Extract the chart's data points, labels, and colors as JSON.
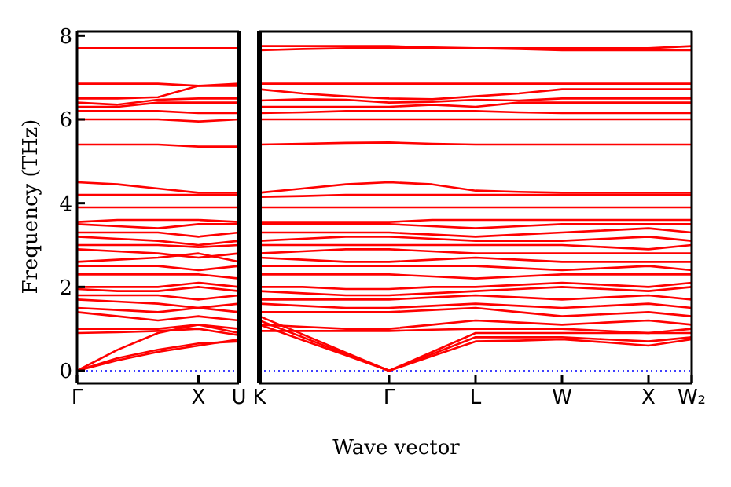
{
  "chart_data": [
    {
      "type": "line",
      "ylabel": "Frequency (THz)",
      "categories": [
        "Γ",
        null,
        null,
        "X",
        "U"
      ],
      "ylim": [
        -0.3,
        8.1
      ],
      "yticks": [
        0,
        2,
        4,
        6,
        8
      ],
      "grid": false,
      "marker": "none",
      "line_style": "solid",
      "ref_lines": [
        {
          "axis": "y",
          "value": 0,
          "color": "#0000ff",
          "line_style": "dotted"
        }
      ],
      "series": [
        {
          "color": "#ff0000",
          "values": [
            0,
            0.3,
            0.5,
            0.65,
            0.7
          ]
        },
        {
          "color": "#ff0000",
          "values": [
            0,
            0.25,
            0.45,
            0.6,
            0.75
          ]
        },
        {
          "color": "#ff0000",
          "values": [
            0,
            0.5,
            0.9,
            1.1,
            0.9
          ]
        },
        {
          "color": "#ff0000",
          "values": [
            0.9,
            0.92,
            0.95,
            1.0,
            0.85
          ]
        },
        {
          "color": "#ff0000",
          "values": [
            1.0,
            1.0,
            1.0,
            1.1,
            1.0
          ]
        },
        {
          "color": "#ff0000",
          "values": [
            1.4,
            1.3,
            1.2,
            1.3,
            1.2
          ]
        },
        {
          "color": "#ff0000",
          "values": [
            1.5,
            1.45,
            1.4,
            1.5,
            1.4
          ]
        },
        {
          "color": "#ff0000",
          "values": [
            1.7,
            1.65,
            1.6,
            1.5,
            1.6
          ]
        },
        {
          "color": "#ff0000",
          "values": [
            1.8,
            1.8,
            1.8,
            1.7,
            1.8
          ]
        },
        {
          "color": "#ff0000",
          "values": [
            1.95,
            1.9,
            1.9,
            2.0,
            1.9
          ]
        },
        {
          "color": "#ff0000",
          "values": [
            2.0,
            2.0,
            2.0,
            2.1,
            2.0
          ]
        },
        {
          "color": "#ff0000",
          "values": [
            2.3,
            2.3,
            2.3,
            2.3,
            2.2
          ]
        },
        {
          "color": "#ff0000",
          "values": [
            2.5,
            2.5,
            2.5,
            2.4,
            2.5
          ]
        },
        {
          "color": "#ff0000",
          "values": [
            2.6,
            2.65,
            2.7,
            2.8,
            2.6
          ]
        },
        {
          "color": "#ff0000",
          "values": [
            2.9,
            2.85,
            2.8,
            2.7,
            2.8
          ]
        },
        {
          "color": "#ff0000",
          "values": [
            3.0,
            3.0,
            3.0,
            2.95,
            3.0
          ]
        },
        {
          "color": "#ff0000",
          "values": [
            3.2,
            3.15,
            3.1,
            3.0,
            3.1
          ]
        },
        {
          "color": "#ff0000",
          "values": [
            3.3,
            3.3,
            3.3,
            3.2,
            3.3
          ]
        },
        {
          "color": "#ff0000",
          "values": [
            3.5,
            3.45,
            3.4,
            3.5,
            3.5
          ]
        },
        {
          "color": "#ff0000",
          "values": [
            3.55,
            3.6,
            3.6,
            3.6,
            3.55
          ]
        },
        {
          "color": "#ff0000",
          "values": [
            3.9,
            3.9,
            3.9,
            3.9,
            3.9
          ]
        },
        {
          "color": "#ff0000",
          "values": [
            4.2,
            4.2,
            4.2,
            4.2,
            4.2
          ]
        },
        {
          "color": "#ff0000",
          "values": [
            4.5,
            4.45,
            4.35,
            4.25,
            4.25
          ]
        },
        {
          "color": "#ff0000",
          "values": [
            5.4,
            5.4,
            5.4,
            5.35,
            5.35
          ]
        },
        {
          "color": "#ff0000",
          "values": [
            6.0,
            6.0,
            6.0,
            5.95,
            6.0
          ]
        },
        {
          "color": "#ff0000",
          "values": [
            6.2,
            6.2,
            6.2,
            6.15,
            6.15
          ]
        },
        {
          "color": "#ff0000",
          "values": [
            6.3,
            6.3,
            6.4,
            6.4,
            6.4
          ]
        },
        {
          "color": "#ff0000",
          "values": [
            6.4,
            6.35,
            6.47,
            6.5,
            6.5
          ]
        },
        {
          "color": "#ff0000",
          "values": [
            6.5,
            6.5,
            6.53,
            6.8,
            6.8
          ]
        },
        {
          "color": "#ff0000",
          "values": [
            6.85,
            6.85,
            6.85,
            6.8,
            6.85
          ]
        },
        {
          "color": "#ff0000",
          "values": [
            7.7,
            7.7,
            7.7,
            7.7,
            7.7
          ]
        }
      ]
    },
    {
      "type": "line",
      "xlabel": "Wave vector",
      "categories": [
        "K",
        null,
        null,
        "Γ",
        null,
        "L",
        null,
        "W",
        null,
        "X",
        "W₂"
      ],
      "ylim": [
        -0.3,
        8.1
      ],
      "yticks": [
        0,
        2,
        4,
        6,
        8
      ],
      "tick_labels": "x",
      "grid": false,
      "marker": "none",
      "line_style": "solid",
      "ref_lines": [
        {
          "axis": "y",
          "value": 0,
          "color": "#0000ff",
          "line_style": "dotted"
        }
      ],
      "series": [
        {
          "color": "#ff0000",
          "values": [
            1.3,
            0.87,
            0.43,
            0,
            0.4,
            0.8,
            0.8,
            0.8,
            0.75,
            0.7,
            0.8
          ]
        },
        {
          "color": "#ff0000",
          "values": [
            1.2,
            0.8,
            0.4,
            0,
            0.35,
            0.7,
            0.72,
            0.75,
            0.68,
            0.6,
            0.75
          ]
        },
        {
          "color": "#ff0000",
          "values": [
            1.1,
            0.73,
            0.37,
            0,
            0.45,
            0.9,
            0.9,
            0.9,
            0.9,
            0.9,
            0.9
          ]
        },
        {
          "color": "#ff0000",
          "values": [
            0.95,
            0.95,
            0.95,
            0.95,
            0.98,
            1.0,
            1.0,
            1.0,
            0.95,
            0.9,
            1.0
          ]
        },
        {
          "color": "#ff0000",
          "values": [
            1.1,
            1.05,
            1.0,
            1.0,
            1.1,
            1.2,
            1.15,
            1.1,
            1.15,
            1.2,
            1.1
          ]
        },
        {
          "color": "#ff0000",
          "values": [
            1.4,
            1.4,
            1.4,
            1.4,
            1.45,
            1.5,
            1.4,
            1.3,
            1.35,
            1.4,
            1.3
          ]
        },
        {
          "color": "#ff0000",
          "values": [
            1.6,
            1.55,
            1.5,
            1.5,
            1.55,
            1.6,
            1.55,
            1.5,
            1.55,
            1.6,
            1.5
          ]
        },
        {
          "color": "#ff0000",
          "values": [
            1.7,
            1.7,
            1.7,
            1.7,
            1.75,
            1.8,
            1.75,
            1.7,
            1.75,
            1.8,
            1.7
          ]
        },
        {
          "color": "#ff0000",
          "values": [
            1.9,
            1.85,
            1.8,
            1.8,
            1.85,
            1.9,
            1.95,
            2.0,
            1.95,
            1.9,
            2.0
          ]
        },
        {
          "color": "#ff0000",
          "values": [
            2.0,
            2.0,
            1.95,
            1.95,
            2.0,
            2.0,
            2.05,
            2.1,
            2.05,
            2.0,
            2.1
          ]
        },
        {
          "color": "#ff0000",
          "values": [
            2.3,
            2.3,
            2.3,
            2.3,
            2.25,
            2.2,
            2.25,
            2.3,
            2.3,
            2.3,
            2.3
          ]
        },
        {
          "color": "#ff0000",
          "values": [
            2.5,
            2.5,
            2.5,
            2.5,
            2.5,
            2.5,
            2.45,
            2.4,
            2.45,
            2.5,
            2.4
          ]
        },
        {
          "color": "#ff0000",
          "values": [
            2.7,
            2.65,
            2.6,
            2.6,
            2.65,
            2.7,
            2.65,
            2.6,
            2.6,
            2.6,
            2.6
          ]
        },
        {
          "color": "#ff0000",
          "values": [
            2.8,
            2.85,
            2.9,
            2.9,
            2.85,
            2.8,
            2.8,
            2.8,
            2.8,
            2.8,
            2.8
          ]
        },
        {
          "color": "#ff0000",
          "values": [
            3.0,
            3.0,
            3.0,
            3.0,
            3.0,
            3.0,
            3.0,
            3.0,
            2.95,
            2.9,
            3.0
          ]
        },
        {
          "color": "#ff0000",
          "values": [
            3.1,
            3.15,
            3.2,
            3.2,
            3.15,
            3.1,
            3.1,
            3.1,
            3.15,
            3.2,
            3.1
          ]
        },
        {
          "color": "#ff0000",
          "values": [
            3.3,
            3.3,
            3.3,
            3.3,
            3.25,
            3.2,
            3.25,
            3.3,
            3.35,
            3.4,
            3.3
          ]
        },
        {
          "color": "#ff0000",
          "values": [
            3.5,
            3.5,
            3.5,
            3.5,
            3.45,
            3.4,
            3.45,
            3.5,
            3.5,
            3.5,
            3.5
          ]
        },
        {
          "color": "#ff0000",
          "values": [
            3.55,
            3.55,
            3.55,
            3.55,
            3.6,
            3.6,
            3.6,
            3.6,
            3.6,
            3.6,
            3.6
          ]
        },
        {
          "color": "#ff0000",
          "values": [
            3.9,
            3.9,
            3.9,
            3.9,
            3.9,
            3.9,
            3.9,
            3.9,
            3.9,
            3.9,
            3.9
          ]
        },
        {
          "color": "#ff0000",
          "values": [
            4.15,
            4.17,
            4.2,
            4.2,
            4.2,
            4.2,
            4.2,
            4.2,
            4.2,
            4.2,
            4.2
          ]
        },
        {
          "color": "#ff0000",
          "values": [
            4.25,
            4.35,
            4.45,
            4.5,
            4.45,
            4.3,
            4.27,
            4.25,
            4.25,
            4.25,
            4.25
          ]
        },
        {
          "color": "#ff0000",
          "values": [
            5.4,
            5.42,
            5.44,
            5.45,
            5.42,
            5.4,
            5.4,
            5.4,
            5.4,
            5.4,
            5.4
          ]
        },
        {
          "color": "#ff0000",
          "values": [
            6.0,
            6.0,
            6.0,
            6.0,
            6.0,
            6.0,
            6.0,
            6.0,
            6.0,
            6.0,
            6.0
          ]
        },
        {
          "color": "#ff0000",
          "values": [
            6.15,
            6.17,
            6.2,
            6.2,
            6.2,
            6.2,
            6.17,
            6.15,
            6.15,
            6.15,
            6.15
          ]
        },
        {
          "color": "#ff0000",
          "values": [
            6.3,
            6.3,
            6.3,
            6.3,
            6.35,
            6.3,
            6.4,
            6.4,
            6.4,
            6.4,
            6.4
          ]
        },
        {
          "color": "#ff0000",
          "values": [
            6.45,
            6.48,
            6.47,
            6.4,
            6.42,
            6.47,
            6.45,
            6.5,
            6.5,
            6.5,
            6.5
          ]
        },
        {
          "color": "#ff0000",
          "values": [
            6.72,
            6.62,
            6.55,
            6.5,
            6.48,
            6.55,
            6.62,
            6.72,
            6.72,
            6.72,
            6.72
          ]
        },
        {
          "color": "#ff0000",
          "values": [
            6.85,
            6.85,
            6.85,
            6.85,
            6.85,
            6.85,
            6.85,
            6.85,
            6.85,
            6.85,
            6.85
          ]
        },
        {
          "color": "#ff0000",
          "values": [
            7.65,
            7.68,
            7.7,
            7.7,
            7.7,
            7.7,
            7.68,
            7.65,
            7.65,
            7.65,
            7.65
          ]
        },
        {
          "color": "#ff0000",
          "values": [
            7.75,
            7.75,
            7.75,
            7.75,
            7.72,
            7.7,
            7.7,
            7.7,
            7.7,
            7.7,
            7.75
          ]
        }
      ]
    }
  ]
}
